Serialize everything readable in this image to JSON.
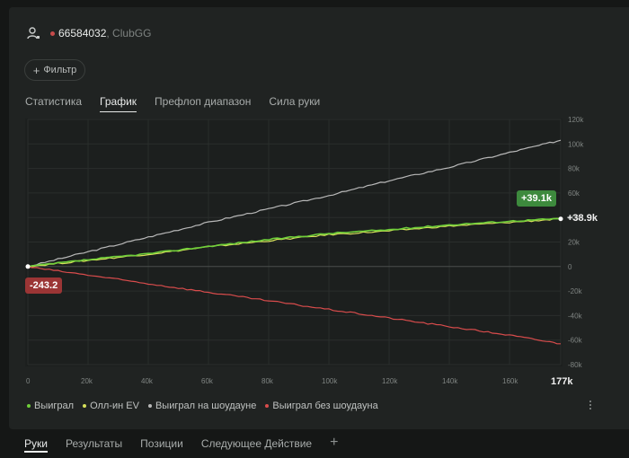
{
  "header": {
    "player_id": "66584032",
    "club": ", ClubGG"
  },
  "filter": {
    "label": "Фильтр"
  },
  "tabs": [
    "Статистика",
    "График",
    "Префлоп диапазон",
    "Сила руки"
  ],
  "legend": [
    {
      "label": "Выиграл",
      "color": "#6fcf3a"
    },
    {
      "label": "Олл-ин EV",
      "color": "#d6e05a"
    },
    {
      "label": "Выиграл на шоудауне",
      "color": "#b8b8b8"
    },
    {
      "label": "Выиграл без шоудауна",
      "color": "#d94c4c"
    }
  ],
  "bottom_tabs": [
    "Руки",
    "Результаты",
    "Позиции",
    "Следующее Действие"
  ],
  "badges": {
    "end_green": "+39.1k",
    "end_white": "+38.9k",
    "start_red": "-243.2"
  },
  "chart_data": {
    "type": "line",
    "x_ticks": [
      "0",
      "20k",
      "40k",
      "60k",
      "80k",
      "100k",
      "120k",
      "140k",
      "160k",
      "177k"
    ],
    "y_ticks": [
      "120k",
      "100k",
      "80k",
      "60k",
      "40k",
      "20k",
      "0",
      "-20k",
      "-40k",
      "-60k",
      "-80k"
    ],
    "xlim": [
      0,
      177000
    ],
    "ylim": [
      -80000,
      120000
    ],
    "series": [
      {
        "name": "Выиграл на шоудауне",
        "color": "#b8b8b8",
        "x": [
          0,
          20000,
          40000,
          60000,
          80000,
          100000,
          120000,
          140000,
          160000,
          177000
        ],
        "y": [
          0,
          12000,
          24000,
          36000,
          47000,
          58000,
          70000,
          81000,
          93000,
          103000
        ]
      },
      {
        "name": "Олл-ин EV",
        "color": "#d6e05a",
        "x": [
          0,
          20000,
          40000,
          60000,
          80000,
          100000,
          120000,
          140000,
          160000,
          177000
        ],
        "y": [
          0,
          5000,
          10000,
          16000,
          21000,
          26000,
          29000,
          33000,
          36000,
          38900
        ]
      },
      {
        "name": "Выиграл",
        "color": "#6fcf3a",
        "x": [
          0,
          20000,
          40000,
          60000,
          80000,
          100000,
          120000,
          140000,
          160000,
          177000
        ],
        "y": [
          0,
          5500,
          10500,
          16500,
          22000,
          27000,
          30000,
          34000,
          37000,
          39100
        ]
      },
      {
        "name": "Выиграл без шоудауна",
        "color": "#d94c4c",
        "x": [
          0,
          20000,
          40000,
          60000,
          80000,
          100000,
          120000,
          140000,
          160000,
          177000
        ],
        "y": [
          -243.2,
          -7000,
          -14000,
          -21000,
          -28000,
          -35000,
          -42000,
          -49000,
          -56000,
          -63000
        ]
      }
    ],
    "grid": true
  }
}
